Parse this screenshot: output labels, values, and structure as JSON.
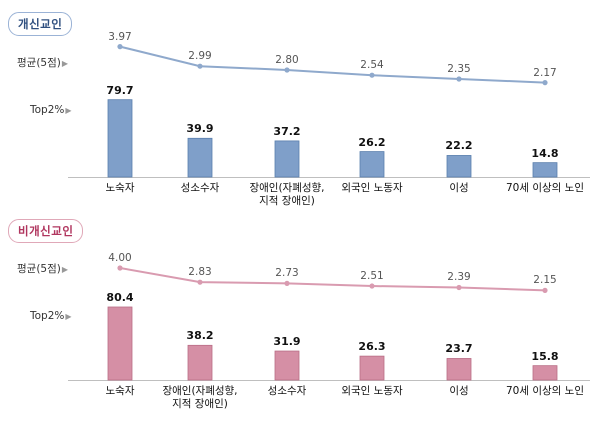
{
  "chart_data": [
    {
      "type": "bar",
      "title": "개신교인",
      "avg_label": "평균(5점)",
      "top_label": "Top2%",
      "categories": [
        "노숙자",
        "성소수자",
        "장애인(자폐성향,\n지적 장애인)",
        "외국인 노동자",
        "이성",
        "70세 이상의 노인"
      ],
      "series": [
        {
          "name": "평균(5점)",
          "type": "line",
          "values": [
            3.97,
            2.99,
            2.8,
            2.54,
            2.35,
            2.17
          ]
        },
        {
          "name": "Top2%",
          "type": "bar",
          "values": [
            79.7,
            39.9,
            37.2,
            26.2,
            22.2,
            14.8
          ]
        }
      ],
      "colors": {
        "bar": "#7f9fc9",
        "bar_border": "#5a7fad",
        "line": "#8fa9cc",
        "badge": "#2f4f7f"
      }
    },
    {
      "type": "bar",
      "title": "비개신교인",
      "avg_label": "평균(5점)",
      "top_label": "Top2%",
      "categories": [
        "노숙자",
        "장애인(자폐성향,\n지적 장애인)",
        "성소수자",
        "외국인 노동자",
        "이성",
        "70세 이상의 노인"
      ],
      "series": [
        {
          "name": "평균(5점)",
          "type": "line",
          "values": [
            4.0,
            2.83,
            2.73,
            2.51,
            2.39,
            2.15
          ]
        },
        {
          "name": "Top2%",
          "type": "bar",
          "values": [
            80.4,
            38.2,
            31.9,
            26.3,
            23.7,
            15.8
          ]
        }
      ],
      "colors": {
        "bar": "#d58fa5",
        "bar_border": "#b96d86",
        "line": "#d99bb0",
        "badge": "#b0355e"
      }
    }
  ]
}
